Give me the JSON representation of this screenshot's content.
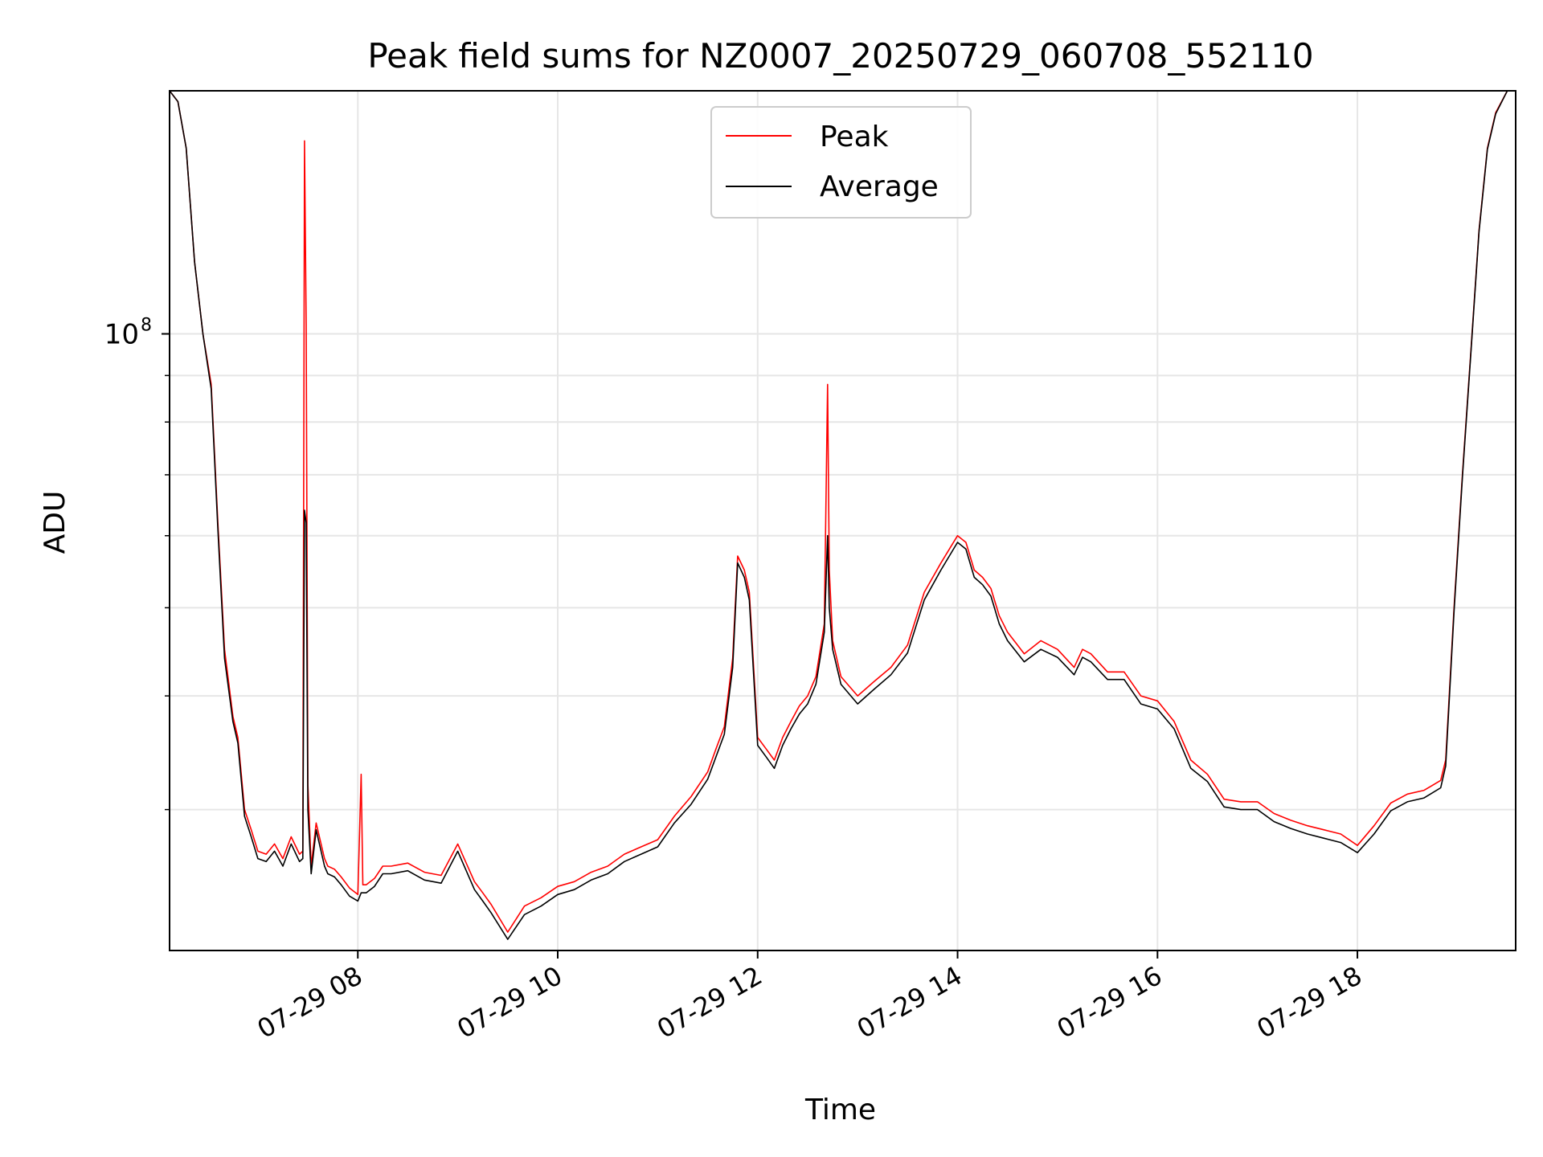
{
  "chart_data": {
    "type": "line",
    "title": "Peak field sums for NZ0007_20250729_060708_552110",
    "xlabel": "Time",
    "ylabel": "ADU",
    "yscale": "log",
    "xlim": [
      "07-29 06:07",
      "07-29 19:35"
    ],
    "ylim": [
      21000000,
      185000000
    ],
    "grid": true,
    "legend": "upper-center",
    "x_ticks": [
      "07-29 08",
      "07-29 10",
      "07-29 12",
      "07-29 14",
      "07-29 16",
      "07-29 18"
    ],
    "y_major_ticks": [
      {
        "value": 100000000,
        "label": "10",
        "exponent": "8"
      }
    ],
    "y_minor_ticks": [
      30000000,
      40000000,
      50000000,
      60000000,
      70000000,
      80000000,
      90000000
    ],
    "series": [
      {
        "name": "Peak",
        "color": "#ff0000",
        "x": [
          "06:07",
          "06:12",
          "06:17",
          "06:22",
          "06:27",
          "06:32",
          "06:36",
          "06:40",
          "06:45",
          "06:48",
          "06:52",
          "06:56",
          "07:00",
          "07:05",
          "07:10",
          "07:15",
          "07:20",
          "07:25",
          "07:27",
          "07:28",
          "07:29",
          "07:30",
          "07:32",
          "07:35",
          "07:40",
          "07:42",
          "07:46",
          "07:50",
          "07:55",
          "08:00",
          "08:02",
          "08:03",
          "08:05",
          "08:10",
          "08:15",
          "08:20",
          "08:30",
          "08:40",
          "08:50",
          "09:00",
          "09:10",
          "09:15",
          "09:20",
          "09:30",
          "09:40",
          "09:50",
          "10:00",
          "10:10",
          "10:20",
          "10:30",
          "10:40",
          "10:50",
          "11:00",
          "11:10",
          "11:20",
          "11:30",
          "11:35",
          "11:40",
          "11:45",
          "11:48",
          "11:52",
          "11:55",
          "12:00",
          "12:05",
          "12:10",
          "12:15",
          "12:20",
          "12:25",
          "12:30",
          "12:35",
          "12:40",
          "12:42",
          "12:43",
          "12:45",
          "12:50",
          "13:00",
          "13:10",
          "13:20",
          "13:30",
          "13:40",
          "13:50",
          "14:00",
          "14:05",
          "14:10",
          "14:15",
          "14:20",
          "14:25",
          "14:30",
          "14:40",
          "14:50",
          "15:00",
          "15:10",
          "15:15",
          "15:20",
          "15:30",
          "15:40",
          "15:50",
          "16:00",
          "16:10",
          "16:20",
          "16:30",
          "16:40",
          "16:50",
          "17:00",
          "17:10",
          "17:20",
          "17:30",
          "17:40",
          "17:50",
          "18:00",
          "18:10",
          "18:20",
          "18:30",
          "18:40",
          "18:50",
          "18:53",
          "18:58",
          "19:03",
          "19:08",
          "19:13",
          "19:18",
          "19:23",
          "19:30",
          "19:35"
        ],
        "values": [
          185000000,
          180000000,
          160000000,
          120000000,
          100000000,
          88000000,
          62000000,
          45000000,
          38000000,
          36000000,
          30000000,
          28500000,
          27000000,
          26800000,
          27500000,
          26500000,
          28000000,
          26800000,
          27000000,
          163000000,
          102000000,
          32000000,
          26000000,
          29000000,
          26500000,
          26000000,
          25800000,
          25300000,
          24600000,
          24200000,
          32800000,
          24800000,
          24800000,
          25200000,
          26000000,
          26000000,
          26200000,
          25600000,
          25400000,
          27500000,
          25000000,
          24300000,
          23600000,
          22000000,
          23500000,
          24000000,
          24700000,
          25000000,
          25600000,
          26000000,
          26800000,
          27300000,
          27800000,
          29500000,
          31000000,
          33000000,
          35000000,
          37000000,
          44000000,
          57000000,
          55000000,
          52000000,
          36000000,
          35000000,
          34000000,
          36000000,
          37500000,
          39000000,
          40000000,
          42000000,
          48000000,
          88000000,
          55000000,
          46000000,
          42000000,
          40000000,
          41500000,
          43000000,
          45500000,
          52000000,
          56000000,
          60000000,
          59000000,
          55000000,
          54000000,
          52500000,
          49000000,
          47000000,
          44500000,
          46000000,
          45000000,
          43000000,
          45000000,
          44500000,
          42500000,
          42500000,
          40000000,
          39500000,
          37500000,
          34000000,
          32800000,
          30800000,
          30600000,
          30600000,
          29700000,
          29200000,
          28800000,
          28500000,
          28200000,
          27400000,
          28800000,
          30500000,
          31200000,
          31500000,
          32300000,
          34000000,
          50000000,
          70000000,
          95000000,
          130000000,
          160000000,
          175000000,
          185000000,
          185000000
        ]
      },
      {
        "name": "Average",
        "color": "#000000",
        "x": [
          "06:07",
          "06:12",
          "06:17",
          "06:22",
          "06:27",
          "06:32",
          "06:36",
          "06:40",
          "06:45",
          "06:48",
          "06:52",
          "06:56",
          "07:00",
          "07:05",
          "07:10",
          "07:15",
          "07:20",
          "07:25",
          "07:27",
          "07:28",
          "07:29",
          "07:30",
          "07:32",
          "07:35",
          "07:40",
          "07:42",
          "07:46",
          "07:50",
          "07:55",
          "08:00",
          "08:02",
          "08:03",
          "08:05",
          "08:10",
          "08:15",
          "08:20",
          "08:30",
          "08:40",
          "08:50",
          "09:00",
          "09:10",
          "09:15",
          "09:20",
          "09:30",
          "09:40",
          "09:50",
          "10:00",
          "10:10",
          "10:20",
          "10:30",
          "10:40",
          "10:50",
          "11:00",
          "11:10",
          "11:20",
          "11:30",
          "11:35",
          "11:40",
          "11:45",
          "11:48",
          "11:52",
          "11:55",
          "12:00",
          "12:05",
          "12:10",
          "12:15",
          "12:20",
          "12:25",
          "12:30",
          "12:35",
          "12:40",
          "12:42",
          "12:43",
          "12:45",
          "12:50",
          "13:00",
          "13:10",
          "13:20",
          "13:30",
          "13:40",
          "13:50",
          "14:00",
          "14:05",
          "14:10",
          "14:15",
          "14:20",
          "14:25",
          "14:30",
          "14:40",
          "14:50",
          "15:00",
          "15:10",
          "15:15",
          "15:20",
          "15:30",
          "15:40",
          "15:50",
          "16:00",
          "16:10",
          "16:20",
          "16:30",
          "16:40",
          "16:50",
          "17:00",
          "17:10",
          "17:20",
          "17:30",
          "17:40",
          "17:50",
          "18:00",
          "18:10",
          "18:20",
          "18:30",
          "18:40",
          "18:50",
          "18:53",
          "18:58",
          "19:03",
          "19:08",
          "19:13",
          "19:18",
          "19:23",
          "19:30",
          "19:35"
        ],
        "values": [
          185000000,
          180000000,
          160000000,
          120000000,
          100000000,
          87000000,
          61000000,
          44000000,
          37500000,
          35500000,
          29500000,
          28000000,
          26500000,
          26300000,
          27000000,
          26000000,
          27500000,
          26300000,
          26500000,
          64000000,
          62000000,
          30000000,
          25500000,
          28500000,
          26000000,
          25500000,
          25300000,
          24800000,
          24100000,
          23800000,
          24300000,
          24300000,
          24300000,
          24700000,
          25500000,
          25500000,
          25700000,
          25100000,
          24900000,
          27000000,
          24500000,
          23800000,
          23100000,
          21600000,
          23000000,
          23500000,
          24200000,
          24500000,
          25100000,
          25500000,
          26300000,
          26800000,
          27300000,
          29000000,
          30400000,
          32400000,
          34300000,
          36300000,
          43000000,
          56000000,
          54000000,
          51000000,
          35300000,
          34300000,
          33300000,
          35300000,
          36800000,
          38200000,
          39200000,
          41200000,
          47000000,
          60000000,
          50000000,
          45000000,
          41200000,
          39200000,
          40700000,
          42200000,
          44600000,
          51000000,
          55000000,
          59000000,
          58000000,
          54000000,
          53000000,
          51500000,
          48000000,
          46000000,
          43600000,
          45000000,
          44100000,
          42200000,
          44100000,
          43600000,
          41700000,
          41700000,
          39200000,
          38700000,
          36800000,
          33300000,
          32200000,
          30200000,
          30000000,
          30000000,
          29100000,
          28600000,
          28200000,
          27900000,
          27600000,
          26900000,
          28200000,
          29900000,
          30600000,
          30900000,
          31700000,
          33500000,
          49500000,
          69500000,
          94500000,
          129500000,
          159500000,
          174500000,
          185000000,
          185000000
        ]
      }
    ]
  }
}
